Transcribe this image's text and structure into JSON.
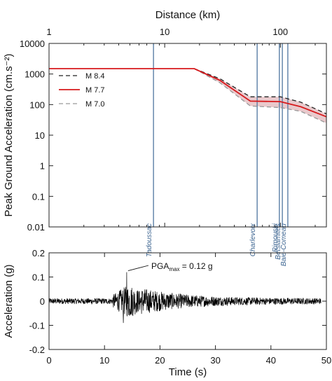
{
  "chart_data": [
    {
      "type": "line",
      "x_scale": "log",
      "y_scale": "log",
      "xlabel": "Distance (km)",
      "ylabel": "Peak Ground Acceleration (cm.s⁻²)",
      "xlim": [
        1,
        250
      ],
      "ylim": [
        0.01,
        10000
      ],
      "x_ticks": [
        {
          "value": 1,
          "label": "1"
        },
        {
          "value": 10,
          "label": "10"
        },
        {
          "value": 100,
          "label": "100"
        }
      ],
      "y_ticks": [
        {
          "value": 0.01,
          "label": "0.01"
        },
        {
          "value": 0.1,
          "label": "0.1"
        },
        {
          "value": 1,
          "label": "1"
        },
        {
          "value": 10,
          "label": "10"
        },
        {
          "value": 100,
          "label": "100"
        },
        {
          "value": 1000,
          "label": "1000"
        },
        {
          "value": 10000,
          "label": "10000"
        }
      ],
      "legend_position": "top-left",
      "series": [
        {
          "name": "M 8.4",
          "style": "dashed",
          "color": "#222222",
          "x": [
            18,
            30,
            55,
            100,
            150,
            250
          ],
          "y": [
            1500,
            700,
            180,
            180,
            120,
            50
          ]
        },
        {
          "name": "M 7.7",
          "style": "solid",
          "color": "#d7191c",
          "x": [
            1,
            18,
            30,
            55,
            100,
            150,
            250
          ],
          "y": [
            1500,
            1500,
            620,
            130,
            125,
            85,
            40
          ]
        },
        {
          "name": "M 7.0",
          "style": "dashed",
          "color": "#999999",
          "x": [
            18,
            30,
            55,
            100,
            150,
            250
          ],
          "y": [
            1500,
            520,
            90,
            80,
            60,
            25
          ]
        }
      ],
      "band_color": "#e9c9cc",
      "locations": [
        {
          "name": "Tadoussac",
          "distance": 8
        },
        {
          "name": "Charlevoix",
          "distance": 63
        },
        {
          "name": "Rimouski",
          "distance": 98
        },
        {
          "name": "Betsiamites",
          "distance": 104
        },
        {
          "name": "Baie-Comeau",
          "distance": 116
        }
      ],
      "location_line_color": "#5b7fa6"
    },
    {
      "type": "line",
      "xlabel": "Time (s)",
      "ylabel": "Acceleration (g)",
      "xlim": [
        0,
        50
      ],
      "ylim": [
        -0.2,
        0.2
      ],
      "x_ticks": [
        0,
        10,
        20,
        30,
        40,
        50
      ],
      "y_ticks": [
        {
          "value": -0.2,
          "label": "-0.2"
        },
        {
          "value": -0.1,
          "label": "-0.1"
        },
        {
          "value": 0,
          "label": "0"
        },
        {
          "value": 0.1,
          "label": "0.1"
        },
        {
          "value": 0.2,
          "label": "0.2"
        }
      ],
      "signal": {
        "start": 0,
        "end": 49,
        "strong_motion_start": 11.5,
        "peak_time": 14,
        "peak_value": 0.12,
        "color": "#000000"
      },
      "annotation": {
        "prefix": "PGA",
        "subscript": "max",
        "suffix": " = 0.12 g",
        "x": 14,
        "y": 0.12
      }
    }
  ]
}
